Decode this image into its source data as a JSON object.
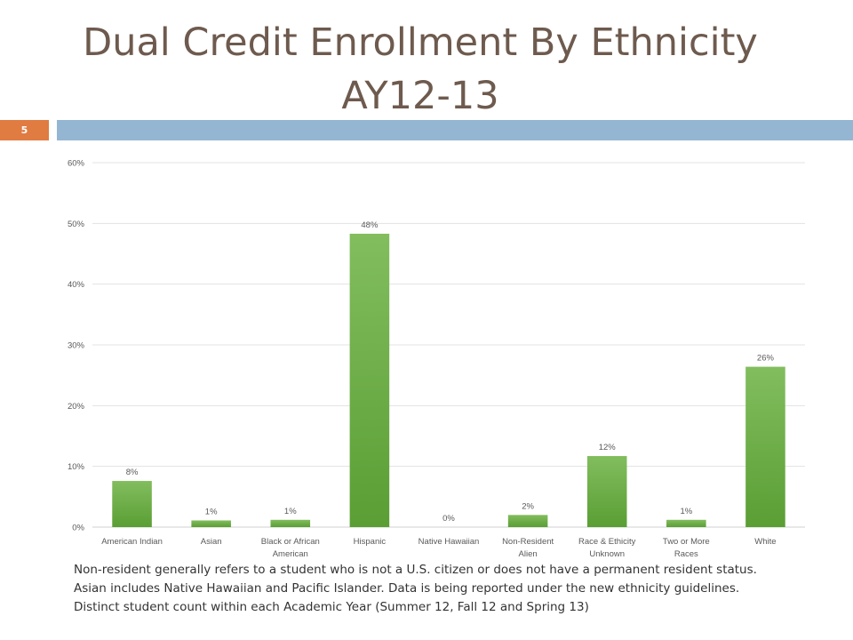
{
  "title_line1": "Dual Credit Enrollment By Ethnicity",
  "title_line2": "AY12-13",
  "slide_number": "5",
  "footnote": "Non-resident generally refers to a student who is not a U.S. citizen or does not have a permanent resident status. Asian includes Native Hawaiian and Pacific Islander. Data is being reported under the new ethnicity guidelines.  Distinct student count within each Academic Year (Summer 12, Fall 12 and Spring 13)",
  "colors": {
    "bar_top": "#82bd5e",
    "bar_bottom": "#5a9e34",
    "header_rule": "#94b6d2",
    "slide_number_bg": "#e07b42",
    "title": "#6e5a4e"
  },
  "chart_data": {
    "type": "bar",
    "categories": [
      [
        "American Indian"
      ],
      [
        "Asian"
      ],
      [
        "Black or African",
        "American"
      ],
      [
        "Hispanic"
      ],
      [
        "Native Hawaiian"
      ],
      [
        "Non-Resident",
        "Alien"
      ],
      [
        "Race & Ethicity",
        "Unknown"
      ],
      [
        "Two or More",
        "Races"
      ],
      [
        "White"
      ]
    ],
    "values": [
      7.6,
      1.1,
      1.2,
      48.3,
      0.0,
      2.0,
      11.7,
      1.2,
      26.4
    ],
    "data_labels": [
      "8%",
      "1%",
      "1%",
      "48%",
      "0%",
      "2%",
      "12%",
      "1%",
      "26%"
    ],
    "yticks": [
      0,
      10,
      20,
      30,
      40,
      50,
      60
    ],
    "ytick_labels": [
      "0%",
      "10%",
      "20%",
      "30%",
      "40%",
      "50%",
      "60%"
    ],
    "ylim": [
      0,
      60
    ],
    "grid": true,
    "legend": "none",
    "title": "",
    "xlabel": "",
    "ylabel": ""
  }
}
